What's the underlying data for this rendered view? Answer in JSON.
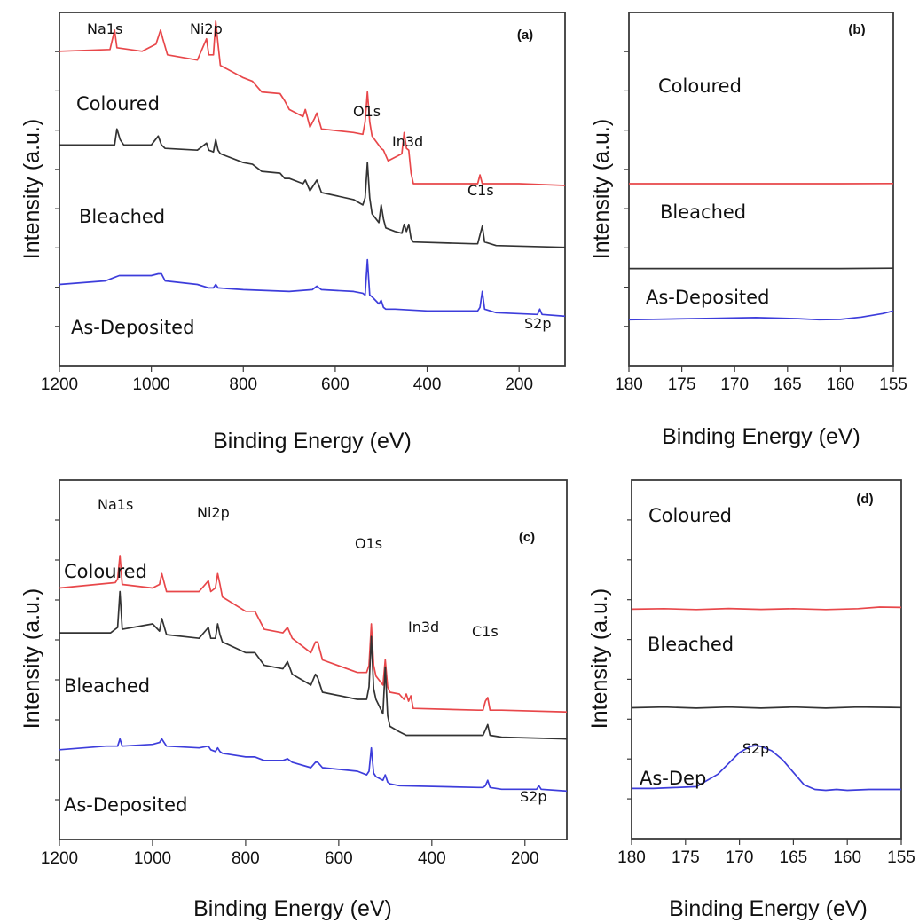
{
  "chart_data": [
    {
      "panel": "(a)",
      "type": "line",
      "xlabel": "Binding Energy (eV)",
      "ylabel": "Intensity (a.u.)",
      "xlim": [
        1200,
        100
      ],
      "xticks": [
        1200,
        1000,
        800,
        600,
        400,
        200
      ],
      "yaxis": "arbitrary units, offset traces",
      "series": [
        {
          "name": "Coloured",
          "color": "#e8474a",
          "x": [
            1200,
            1090,
            1080,
            1075,
            1020,
            990,
            980,
            975,
            965,
            900,
            880,
            875,
            865,
            860,
            855,
            850,
            800,
            780,
            760,
            720,
            710,
            700,
            670,
            665,
            655,
            645,
            640,
            630,
            560,
            540,
            535,
            530,
            525,
            520,
            500,
            495,
            485,
            455,
            450,
            445,
            440,
            435,
            430,
            400,
            300,
            290,
            285,
            280,
            270,
            200,
            100
          ],
          "y": [
            78,
            79,
            90,
            80,
            78,
            82,
            90,
            85,
            76,
            73,
            85,
            76,
            76,
            95,
            82,
            70,
            63,
            61,
            55,
            54,
            50,
            45,
            41,
            45,
            35,
            40,
            43,
            34,
            32,
            31,
            38,
            55,
            38,
            30,
            23,
            22,
            16,
            20,
            32,
            23,
            22,
            9,
            3,
            3,
            3,
            3,
            8,
            3,
            3,
            3,
            2
          ]
        },
        {
          "name": "Bleached",
          "color": "#333333",
          "x": [
            1200,
            1080,
            1075,
            1068,
            1060,
            1000,
            985,
            978,
            970,
            900,
            880,
            875,
            865,
            860,
            855,
            850,
            800,
            780,
            760,
            720,
            710,
            700,
            670,
            665,
            655,
            645,
            640,
            630,
            560,
            540,
            535,
            530,
            525,
            520,
            505,
            500,
            495,
            490,
            470,
            455,
            450,
            445,
            440,
            435,
            430,
            300,
            290,
            285,
            280,
            275,
            250,
            100
          ],
          "y": [
            25,
            25,
            34,
            28,
            25,
            25,
            30,
            25,
            23,
            22,
            26,
            22,
            21,
            28,
            22,
            20,
            15,
            14,
            10,
            9,
            6,
            6,
            3,
            5,
            -1,
            3,
            5,
            -2,
            -6,
            -9,
            -5,
            15,
            -5,
            -14,
            -19,
            -9,
            -17,
            -22,
            -24,
            -25,
            -20,
            -24,
            -20,
            -28,
            -30,
            -31,
            -31,
            -26,
            -21,
            -30,
            -32,
            -33
          ]
        },
        {
          "name": "As-Deposited",
          "color": "#3d3ddb",
          "x": [
            1200,
            1100,
            1070,
            1000,
            985,
            978,
            970,
            900,
            875,
            865,
            860,
            855,
            800,
            700,
            650,
            640,
            630,
            560,
            540,
            535,
            530,
            525,
            520,
            505,
            500,
            495,
            490,
            470,
            400,
            300,
            290,
            285,
            280,
            275,
            250,
            160,
            155,
            150,
            100
          ],
          "y": [
            -54,
            -52,
            -49,
            -49,
            -48,
            -48,
            -52,
            -54,
            -56,
            -56,
            -54,
            -56,
            -57,
            -58,
            -57,
            -55,
            -57,
            -58,
            -59,
            -60,
            -40,
            -60,
            -61,
            -65,
            -63,
            -67,
            -68,
            -68,
            -69,
            -69,
            -69,
            -67,
            -58,
            -68,
            -70,
            -71,
            -68,
            -71,
            -72
          ]
        }
      ],
      "annotations": [
        "Na1s",
        "Ni2p",
        "O1s",
        "In3d",
        "C1s",
        "S2p"
      ]
    },
    {
      "panel": "(b)",
      "type": "line",
      "xlabel": "Binding Energy (eV)",
      "ylabel": "Intensity (a.u.)",
      "xlim": [
        180,
        155
      ],
      "xticks": [
        180,
        175,
        170,
        165,
        160,
        155
      ],
      "series": [
        {
          "name": "Coloured",
          "color": "#e8474a",
          "x": [
            180,
            170,
            160,
            155
          ],
          "y": [
            3,
            3,
            3,
            3.1
          ]
        },
        {
          "name": "Bleached",
          "color": "#333333",
          "x": [
            180,
            170,
            160,
            155
          ],
          "y": [
            -45,
            -45,
            -45,
            -44.8
          ]
        },
        {
          "name": "As-Deposited",
          "color": "#3d3ddb",
          "x": [
            180,
            176,
            172,
            168,
            164,
            162,
            160,
            158,
            156,
            155
          ],
          "y": [
            -74,
            -73.6,
            -73.2,
            -72.8,
            -73.4,
            -74,
            -73.8,
            -72.5,
            -70.5,
            -69
          ]
        }
      ]
    },
    {
      "panel": "(c)",
      "type": "line",
      "xlabel": "Binding Energy (eV)",
      "ylabel": "Intensity (a.u.)",
      "xlim": [
        1200,
        110
      ],
      "xticks": [
        1200,
        1000,
        800,
        600,
        400,
        200
      ],
      "series": [
        {
          "name": "Coloured",
          "color": "#e8474a",
          "x": [
            1200,
            1080,
            1075,
            1070,
            1065,
            1000,
            985,
            980,
            970,
            900,
            880,
            875,
            865,
            860,
            855,
            850,
            800,
            780,
            760,
            720,
            710,
            700,
            660,
            650,
            645,
            635,
            560,
            540,
            535,
            530,
            525,
            520,
            505,
            500,
            495,
            490,
            470,
            460,
            455,
            450,
            445,
            440,
            300,
            290,
            285,
            280,
            275,
            250,
            110
          ],
          "y": [
            40,
            43,
            45,
            58,
            42,
            40,
            42,
            48,
            38,
            38,
            44,
            38,
            40,
            48,
            42,
            35,
            27,
            27,
            17,
            15,
            18,
            12,
            4,
            10,
            10,
            0,
            -7,
            -7,
            -3,
            20,
            -3,
            -9,
            -14,
            0,
            -15,
            -18,
            -19,
            -22,
            -19,
            -23,
            -20,
            -27,
            -28,
            -28,
            -23,
            -21,
            -28,
            -28,
            -29
          ]
        },
        {
          "name": "Bleached",
          "color": "#333333",
          "x": [
            1200,
            1090,
            1075,
            1070,
            1065,
            1000,
            985,
            980,
            970,
            900,
            880,
            875,
            865,
            860,
            855,
            850,
            800,
            780,
            760,
            720,
            710,
            700,
            660,
            650,
            645,
            635,
            560,
            540,
            535,
            530,
            525,
            520,
            505,
            500,
            495,
            490,
            470,
            455,
            300,
            290,
            285,
            280,
            275,
            250,
            110
          ],
          "y": [
            15,
            15,
            18,
            38,
            17,
            20,
            16,
            23,
            14,
            12,
            18,
            12,
            12,
            20,
            14,
            10,
            4,
            4,
            -3,
            -5,
            -1,
            -8,
            -14,
            -8,
            -10,
            -18,
            -22,
            -22,
            -15,
            13,
            -16,
            -22,
            -30,
            -4,
            -31,
            -37,
            -40,
            -42,
            -42,
            -42,
            -39,
            -36,
            -42,
            -43,
            -44
          ]
        },
        {
          "name": "As-Deposited",
          "color": "#3d3ddb",
          "x": [
            1200,
            1100,
            1075,
            1070,
            1065,
            1000,
            985,
            980,
            970,
            900,
            880,
            875,
            865,
            860,
            855,
            850,
            800,
            780,
            760,
            720,
            710,
            700,
            660,
            650,
            645,
            635,
            560,
            540,
            535,
            530,
            525,
            520,
            505,
            500,
            495,
            490,
            470,
            300,
            290,
            285,
            280,
            275,
            250,
            175,
            170,
            165,
            110
          ],
          "y": [
            -50,
            -48,
            -48,
            -44,
            -48,
            -47,
            -46,
            -44,
            -48,
            -49,
            -48,
            -50,
            -51,
            -49,
            -51,
            -52,
            -54,
            -54,
            -56,
            -56,
            -55,
            -57,
            -60,
            -57,
            -57,
            -60,
            -62,
            -64,
            -62,
            -49,
            -63,
            -65,
            -67,
            -64,
            -68,
            -69,
            -70,
            -71,
            -71,
            -70,
            -67,
            -71,
            -72,
            -72,
            -70,
            -72,
            -73
          ]
        }
      ],
      "annotations": [
        "Na1s",
        "Ni2p",
        "O1s",
        "In3d",
        "C1s",
        "S2p"
      ]
    },
    {
      "panel": "(d)",
      "type": "line",
      "xlabel": "Binding Energy (eV)",
      "ylabel": "Intensity (a.u.)",
      "xlim": [
        180,
        155
      ],
      "xticks": [
        180,
        175,
        170,
        165,
        160,
        155
      ],
      "series": [
        {
          "name": "Coloured",
          "color": "#e8474a",
          "x": [
            180,
            177,
            174,
            171,
            168,
            165,
            162,
            159,
            157,
            155
          ],
          "y": [
            28,
            28.3,
            27.8,
            28.4,
            27.9,
            28.3,
            27.8,
            28.3,
            29.2,
            29
          ]
        },
        {
          "name": "Bleached",
          "color": "#333333",
          "x": [
            180,
            177,
            174,
            171,
            168,
            165,
            162,
            159,
            156,
            155
          ],
          "y": [
            -27,
            -26.6,
            -27.2,
            -26.6,
            -27.2,
            -26.6,
            -27.2,
            -26.6,
            -26.8,
            -26.9
          ]
        },
        {
          "name": "As-Deposited",
          "color": "#3d3ddb",
          "x": [
            180,
            178,
            176,
            174,
            172,
            170,
            169,
            168.5,
            168,
            167,
            166,
            165,
            164,
            163,
            162,
            161,
            160,
            158,
            156,
            155
          ],
          "y": [
            -72,
            -72,
            -71.5,
            -71,
            -64,
            -52,
            -48.5,
            -48,
            -48.5,
            -51,
            -56,
            -63,
            -70,
            -72.5,
            -73,
            -72.5,
            -73,
            -72.5,
            -72.5,
            -72.5
          ]
        }
      ],
      "annotations": [
        "S2p"
      ]
    }
  ],
  "text": {
    "xlabel": "Binding Energy (eV)",
    "ylabel": "Intensity (a.u.)",
    "a": {
      "panel": "(a)",
      "series_labels": {
        "coloured": "Coloured",
        "bleached": "Bleached",
        "asdep": "As-Deposited"
      },
      "peaks": {
        "na1s": "Na1s",
        "ni2p": "Ni2p",
        "o1s": "O1s",
        "in3d": "In3d",
        "c1s": "C1s",
        "s2p": "S2p"
      }
    },
    "b": {
      "panel": "(b)",
      "series_labels": {
        "coloured": "Coloured",
        "bleached": "Bleached",
        "asdep": "As-Deposited"
      }
    },
    "c": {
      "panel": "(c)",
      "series_labels": {
        "coloured": "Coloured",
        "bleached": "Bleached",
        "asdep": "As-Deposited"
      },
      "peaks": {
        "na1s": "Na1s",
        "ni2p": "Ni2p",
        "o1s": "O1s",
        "in3d": "In3d",
        "c1s": "C1s",
        "s2p": "S2p"
      }
    },
    "d": {
      "panel": "(d)",
      "series_labels": {
        "coloured": "Coloured",
        "bleached": "Bleached",
        "asdep": "As-Dep"
      },
      "peaks": {
        "s2p": "S2p"
      }
    }
  }
}
